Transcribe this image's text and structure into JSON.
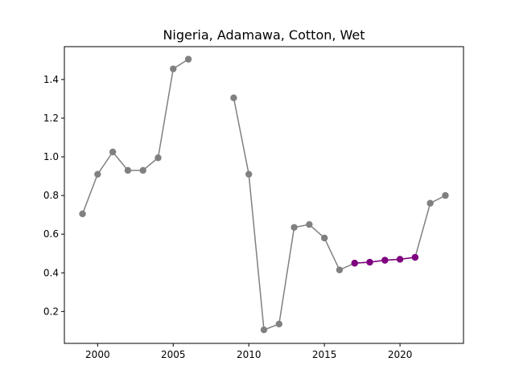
{
  "chart_data": {
    "type": "line",
    "title": "Nigeria, Adamawa, Cotton, Wet",
    "xlabel": "",
    "ylabel": "",
    "xlim": [
      1997.8,
      2024.2
    ],
    "ylim": [
      0.035,
      1.57
    ],
    "xticks": [
      2000,
      2005,
      2010,
      2015,
      2020
    ],
    "yticks": [
      0.2,
      0.4,
      0.6,
      0.8,
      1.0,
      1.2,
      1.4
    ],
    "xtick_labels": [
      "2000",
      "2005",
      "2010",
      "2015",
      "2020"
    ],
    "ytick_labels": [
      "0.2",
      "0.4",
      "0.6",
      "0.8",
      "1.0",
      "1.2",
      "1.4"
    ],
    "grid": false,
    "series": [
      {
        "color": "#808080",
        "x": [
          1999,
          2000,
          2001,
          2002,
          2003,
          2004,
          2005,
          2006,
          2007,
          2008,
          2009,
          2010,
          2011,
          2012,
          2013,
          2014,
          2015,
          2016,
          2017,
          2018,
          2019,
          2020,
          2021,
          2022,
          2023
        ],
        "y": [
          0.705,
          0.91,
          1.025,
          0.93,
          0.93,
          0.995,
          1.455,
          1.505,
          null,
          null,
          1.305,
          0.91,
          0.105,
          0.135,
          0.635,
          0.65,
          0.58,
          0.415,
          0.45,
          0.455,
          0.465,
          0.47,
          0.48,
          0.76,
          0.8
        ]
      },
      {
        "color": "#800080",
        "x": [
          2017,
          2018,
          2019,
          2020,
          2021
        ],
        "y": [
          0.45,
          0.455,
          0.465,
          0.47,
          0.48
        ]
      }
    ]
  }
}
